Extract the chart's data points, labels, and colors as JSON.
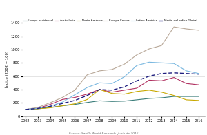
{
  "years": [
    2002,
    2003,
    2004,
    2005,
    2006,
    2007,
    2008,
    2009,
    2010,
    2011,
    2012,
    2013,
    2014,
    2015,
    2016
  ],
  "europa_occidental": [
    100,
    110,
    130,
    155,
    175,
    205,
    230,
    220,
    225,
    245,
    265,
    275,
    295,
    295,
    295
  ],
  "australasia": [
    100,
    115,
    175,
    250,
    280,
    330,
    400,
    360,
    390,
    420,
    540,
    530,
    580,
    490,
    470
  ],
  "norte_america": [
    100,
    110,
    125,
    155,
    185,
    250,
    400,
    340,
    330,
    370,
    390,
    360,
    310,
    245,
    235
  ],
  "europa_central": [
    100,
    130,
    200,
    280,
    390,
    620,
    680,
    700,
    780,
    920,
    1010,
    1060,
    1340,
    1310,
    1290
  ],
  "latin_america": [
    100,
    115,
    150,
    210,
    320,
    430,
    500,
    490,
    590,
    760,
    810,
    800,
    790,
    680,
    640
  ],
  "media_indice_global": [
    100,
    115,
    145,
    190,
    235,
    310,
    400,
    390,
    440,
    530,
    600,
    640,
    650,
    640,
    630
  ],
  "colors": {
    "europa_occidental": "#3a7d7a",
    "australasia": "#b03060",
    "norte_america": "#c8a800",
    "europa_central": "#b8a898",
    "latin_america": "#7ab8e0",
    "media_indice_global": "#202080"
  },
  "ylabel": "Índice (2002 = 100)",
  "source": "Fuente: Savills World Research, junio de 2016",
  "ylim": [
    0,
    1400
  ],
  "yticks": [
    0,
    200,
    400,
    600,
    800,
    1000,
    1200,
    1400
  ],
  "background_color": "#ffffff",
  "grid_color": "#d0d0d0",
  "legend_labels": [
    "Europa occidental",
    "Australasia",
    "Norte América",
    "Europa Central",
    "Latino América",
    "Media del Índice Global"
  ]
}
